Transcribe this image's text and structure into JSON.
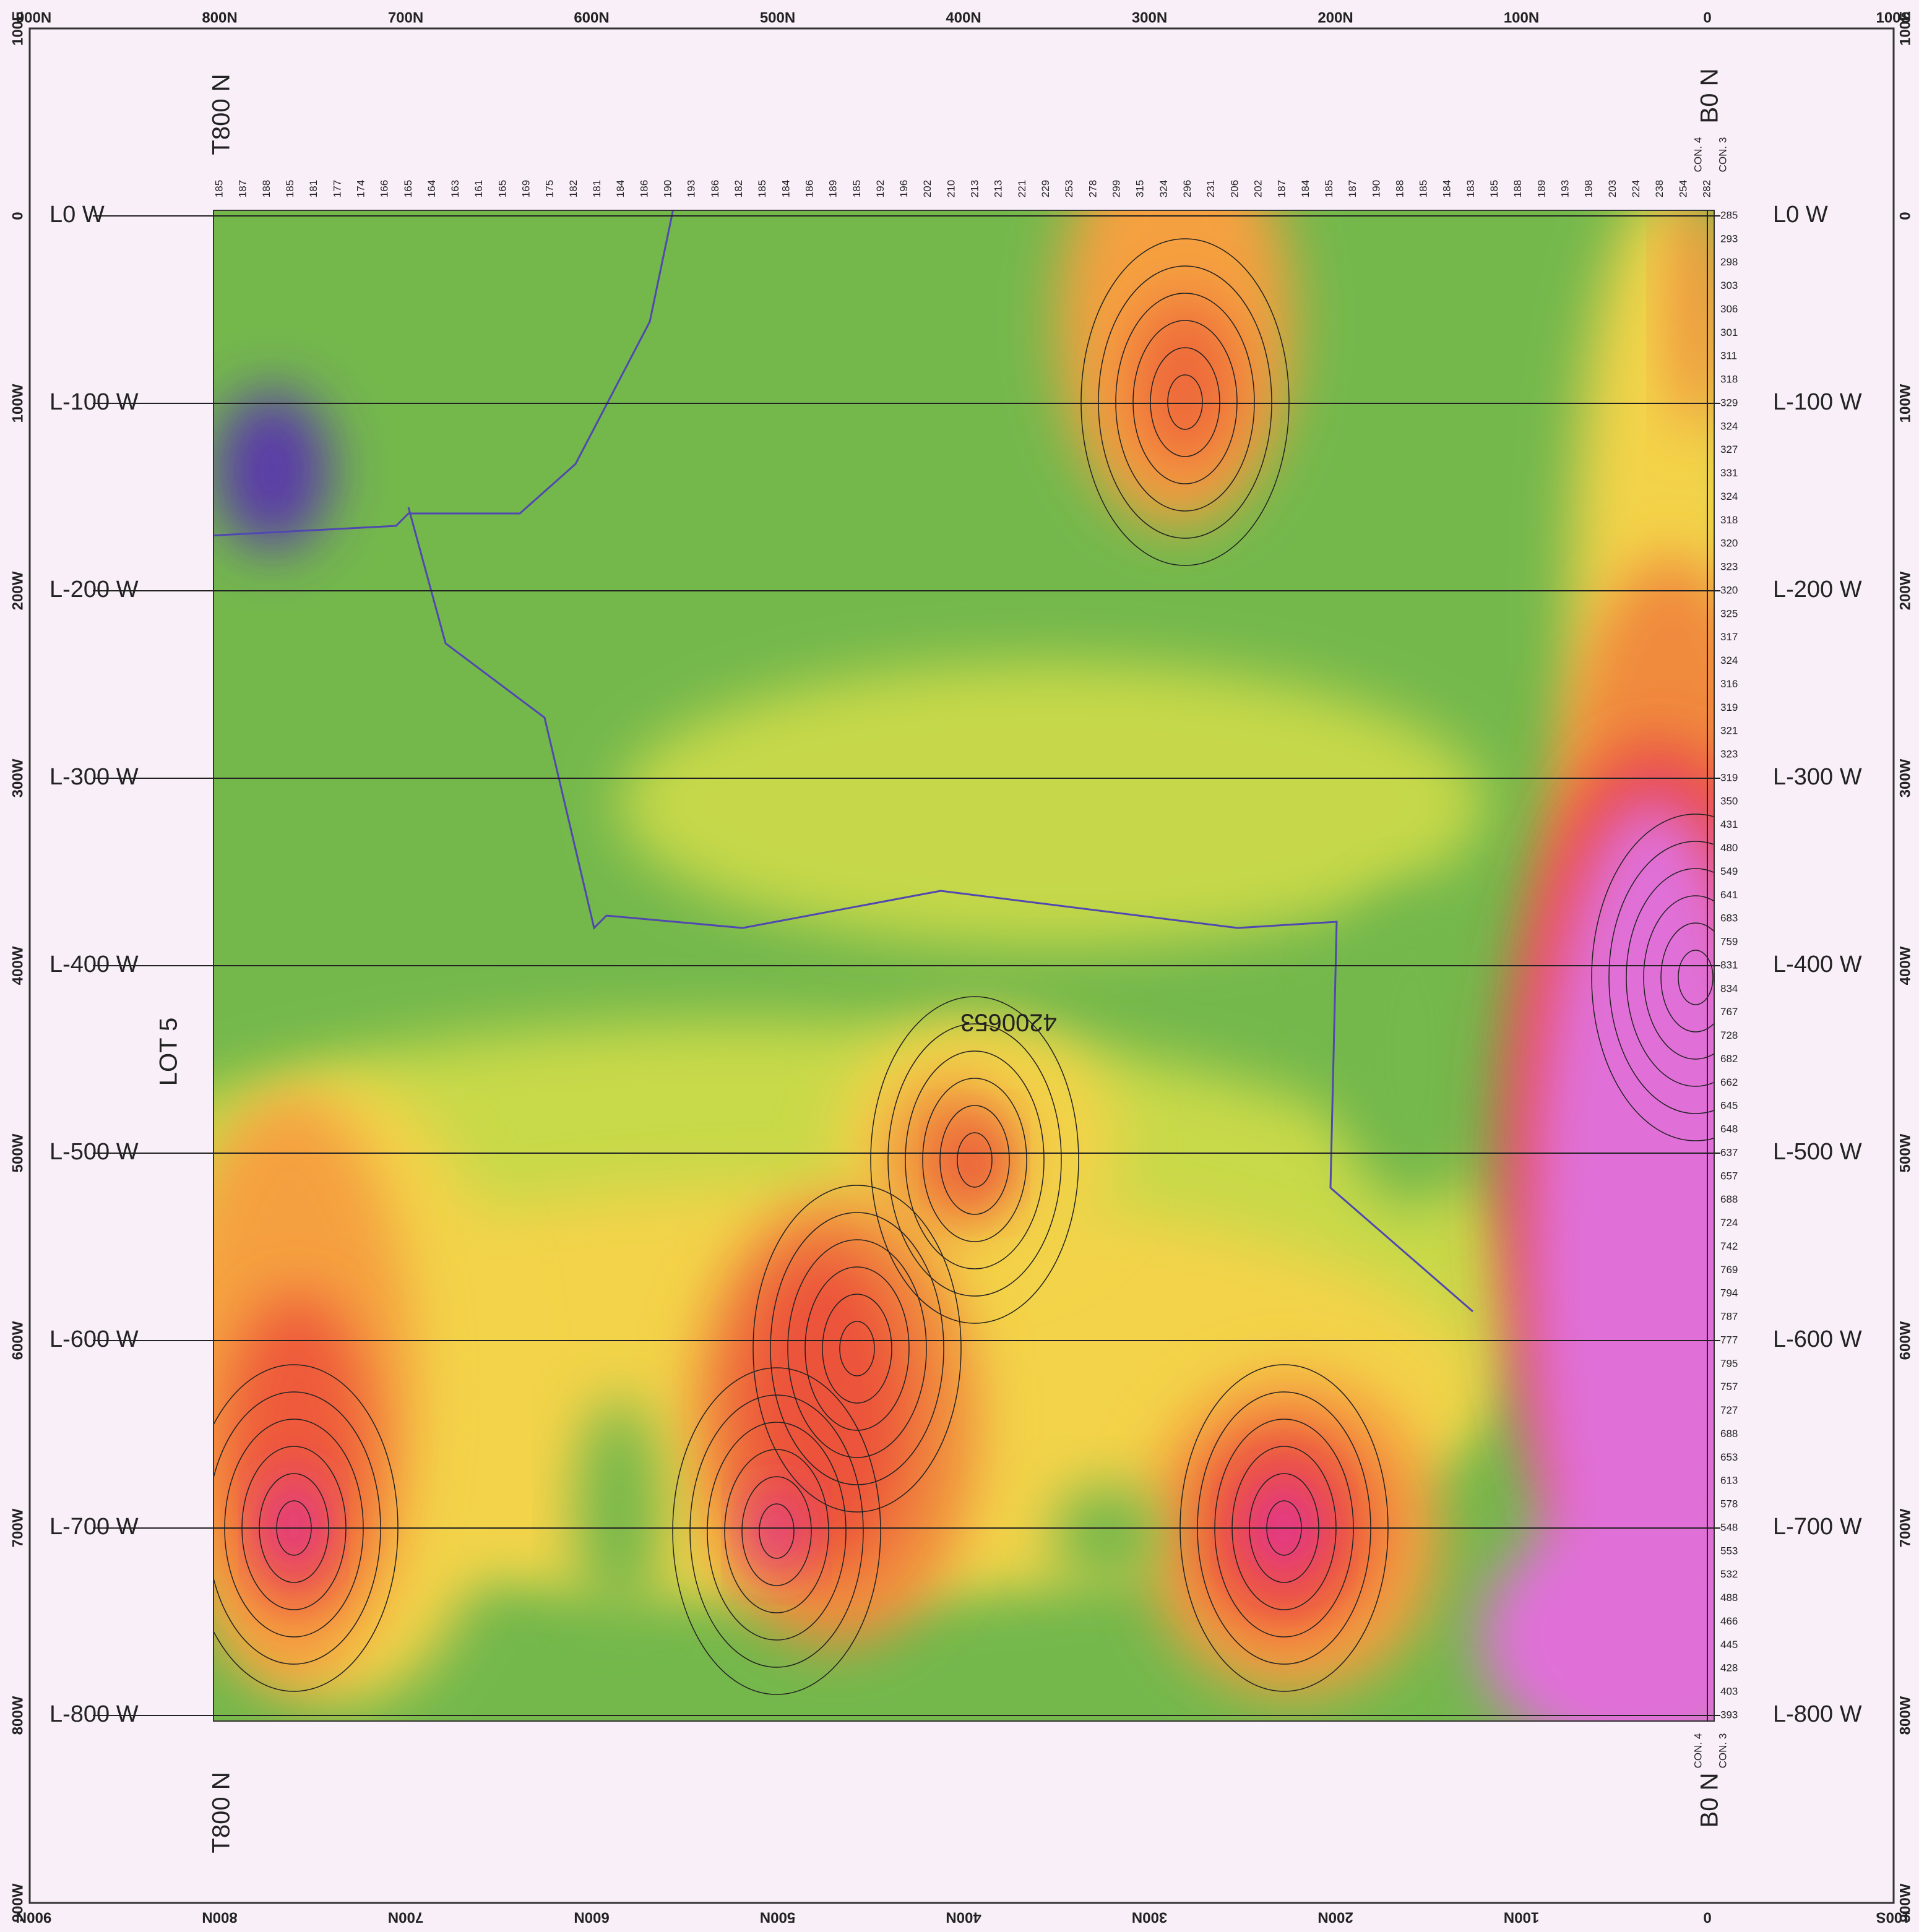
{
  "top_axis": [
    "900N",
    "800N",
    "700N",
    "600N",
    "500N",
    "400N",
    "300N",
    "200N",
    "100N",
    "0",
    "100S"
  ],
  "bottom_axis": [
    "900N",
    "800N",
    "700N",
    "600N",
    "500N",
    "400N",
    "300N",
    "200N",
    "100N",
    "0",
    "100S"
  ],
  "left_axis": [
    "100E",
    "0",
    "100W",
    "200W",
    "300W",
    "400W",
    "500W",
    "600W",
    "700W",
    "800W",
    "900W"
  ],
  "right_axis": [
    "100E",
    "0",
    "100W",
    "200W",
    "300W",
    "400W",
    "500W",
    "600W",
    "700W",
    "800W",
    "900W"
  ],
  "line_labels_left": [
    "L0 W",
    "L-100 W",
    "L-200 W",
    "L-300 W",
    "L-400 W",
    "L-500 W",
    "L-600 W",
    "L-700 W",
    "L-800 W"
  ],
  "line_labels_right": [
    "L0 W",
    "L-100 W",
    "L-200 W",
    "L-300 W",
    "L-400 W",
    "L-500 W",
    "L-600 W",
    "L-700 W",
    "L-800 W"
  ],
  "labels": {
    "tieline_top": "T800 N",
    "tieline_bottom": "T800 N",
    "baseline_top": "B0 N",
    "baseline_bottom": "B0 N",
    "con4_top": "CON. 4",
    "con3_top": "CON. 3",
    "con4_bottom": "CON. 4",
    "con3_bottom": "CON. 3",
    "lot": "LOT 5",
    "claim": "4200653"
  },
  "readings": {
    "line_0": [
      185,
      187,
      188,
      185,
      181,
      177,
      174,
      166,
      165,
      164,
      163,
      161,
      165,
      169,
      175,
      182,
      181,
      184,
      186,
      190,
      193,
      186,
      182,
      185,
      184,
      186,
      189,
      185,
      192,
      196,
      202,
      210,
      213,
      213,
      221,
      229,
      253,
      278,
      299,
      315,
      324,
      296,
      231,
      206,
      202,
      187,
      184,
      185,
      187,
      190,
      188,
      185,
      184,
      183,
      185,
      188,
      189,
      193,
      198,
      203,
      224,
      238,
      254,
      282
    ],
    "baseline_0N": [
      285,
      293,
      298,
      303,
      306,
      301,
      311,
      318,
      329,
      324,
      327,
      331,
      324,
      318,
      320,
      323,
      320,
      325,
      317,
      324,
      316,
      319,
      321,
      323,
      319,
      350,
      431,
      480,
      549,
      641,
      683,
      759,
      831,
      834,
      767,
      728,
      682,
      662,
      645,
      648,
      637,
      657,
      688,
      724,
      742,
      769,
      794,
      787,
      777,
      795,
      757,
      727,
      688,
      653,
      613,
      578,
      548,
      553,
      532,
      488,
      466,
      445,
      428,
      403,
      393
    ]
  }
}
